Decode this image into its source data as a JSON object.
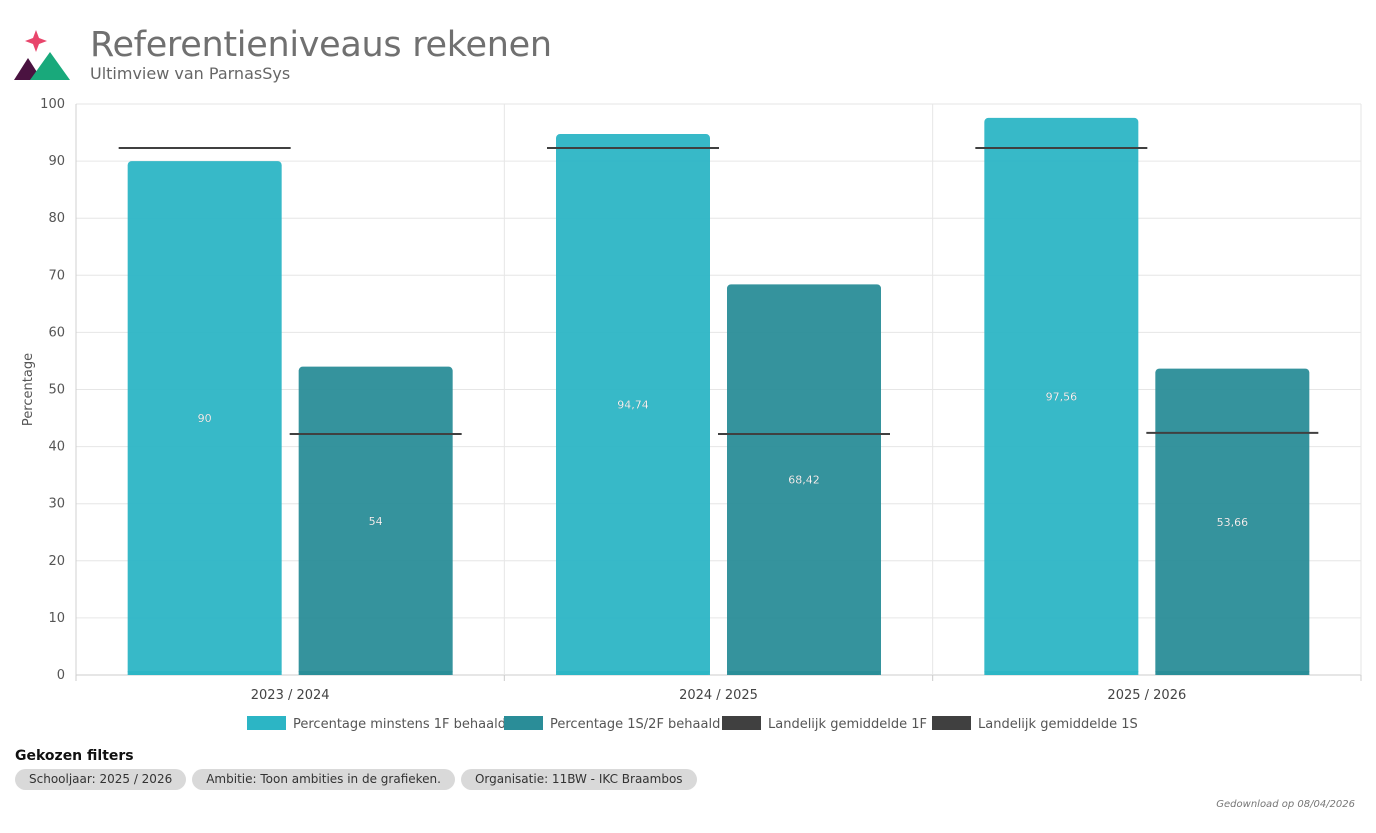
{
  "header": {
    "title": "Referentieniveaus rekenen",
    "subtitle": "Ultimview van ParnasSys"
  },
  "chart_data": {
    "type": "bar",
    "categories": [
      "2023 / 2024",
      "2024 / 2025",
      "2025 / 2026"
    ],
    "ylabel": "Percentage",
    "xlabel": "",
    "ylim": [
      0,
      100
    ],
    "yticks": [
      0,
      10,
      20,
      30,
      40,
      50,
      60,
      70,
      80,
      90,
      100
    ],
    "grid": true,
    "legend_position": "bottom",
    "series": [
      {
        "name": "Percentage minstens 1F behaald",
        "values": [
          90,
          94.74,
          97.56
        ],
        "labels": [
          "90",
          "94,74",
          "97,56"
        ],
        "color": "#2cb5c5"
      },
      {
        "name": "Percentage 1S/2F behaald",
        "values": [
          54,
          68.42,
          53.66
        ],
        "labels": [
          "54",
          "68,42",
          "53,66"
        ],
        "color": "#2a8d98"
      }
    ],
    "reference_lines": [
      {
        "name": "Landelijk gemiddelde 1F",
        "values": [
          92.3,
          92.3,
          92.3
        ],
        "color": "#404040"
      },
      {
        "name": "Landelijk gemiddelde 1S",
        "values": [
          42.2,
          42.2,
          42.4
        ],
        "color": "#404040"
      }
    ]
  },
  "filters": {
    "title": "Gekozen filters",
    "chips": [
      "Schooljaar: 2025 / 2026",
      "Ambitie: Toon ambities in de grafieken.",
      "Organisatie: 11BW - IKC Braambos"
    ]
  },
  "footer": {
    "download_text": "Gedownload op 08/04/2026"
  },
  "colors": {
    "accent_pink": "#e8456b",
    "accent_green": "#19a97b",
    "accent_purple": "#4a1240"
  }
}
